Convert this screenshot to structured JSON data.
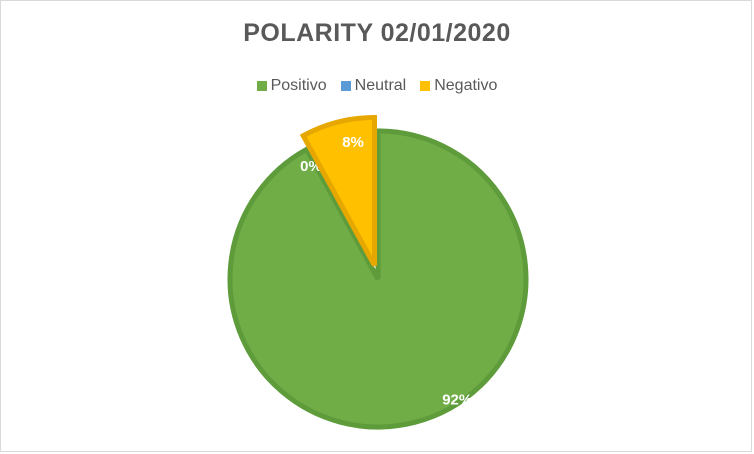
{
  "chart_data": {
    "type": "pie",
    "title": "POLARITY 02/01/2020",
    "categories": [
      "Positivo",
      "Neutral",
      "Negativo"
    ],
    "values": [
      92,
      0,
      8
    ],
    "data_labels": [
      "92%",
      "0%",
      "8%"
    ],
    "colors": [
      "#70ad47",
      "#5b9bd5",
      "#ffc000"
    ],
    "border_colors": [
      "#5e9b3a",
      "#4a86bf",
      "#e6a800"
    ],
    "legend_position": "top",
    "exploded": "Negativo"
  }
}
